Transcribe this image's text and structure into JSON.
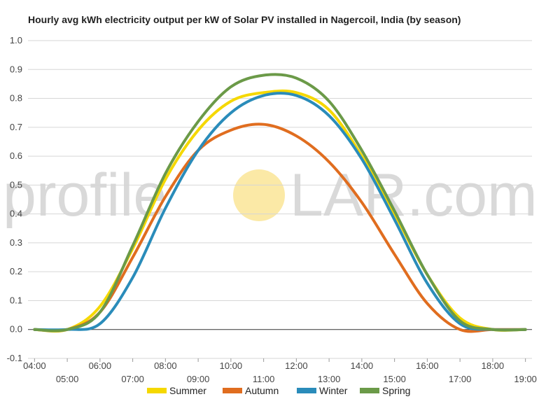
{
  "chart_data": {
    "type": "line",
    "title": "Hourly avg kWh electricity output per kW of Solar PV installed in Nagercoil, India (by season)",
    "xlabel": "",
    "ylabel": "",
    "x": [
      4,
      5,
      6,
      7,
      8,
      9,
      10,
      11,
      12,
      13,
      14,
      15,
      16,
      17,
      18,
      19
    ],
    "x_tick_labels": [
      "04:00",
      "05:00",
      "06:00",
      "07:00",
      "08:00",
      "09:00",
      "10:00",
      "11:00",
      "12:00",
      "13:00",
      "14:00",
      "15:00",
      "16:00",
      "17:00",
      "18:00",
      "19:00"
    ],
    "ylim": [
      -0.1,
      1.0
    ],
    "y_ticks": [
      "1.0",
      "0.9",
      "0.8",
      "0.7",
      "0.6",
      "0.5",
      "0.4",
      "0.3",
      "0.2",
      "0.1",
      "0.0",
      "-0.1"
    ],
    "grid": true,
    "legend_position": "bottom",
    "series": [
      {
        "name": "Summer",
        "color": "#f5d800",
        "values": [
          0.0,
          0.0,
          0.08,
          0.28,
          0.52,
          0.69,
          0.79,
          0.82,
          0.82,
          0.76,
          0.6,
          0.4,
          0.19,
          0.04,
          0.0,
          0.0
        ]
      },
      {
        "name": "Autumn",
        "color": "#e06d1f",
        "values": [
          0.0,
          0.0,
          0.06,
          0.25,
          0.46,
          0.62,
          0.69,
          0.71,
          0.67,
          0.58,
          0.44,
          0.26,
          0.09,
          0.0,
          0.0,
          0.0
        ]
      },
      {
        "name": "Winter",
        "color": "#2a8cba",
        "values": [
          0.0,
          0.0,
          0.02,
          0.18,
          0.42,
          0.62,
          0.75,
          0.81,
          0.81,
          0.74,
          0.59,
          0.38,
          0.16,
          0.02,
          0.0,
          0.0
        ]
      },
      {
        "name": "Spring",
        "color": "#6b9a48",
        "values": [
          0.0,
          0.0,
          0.06,
          0.29,
          0.54,
          0.72,
          0.84,
          0.88,
          0.87,
          0.79,
          0.62,
          0.41,
          0.19,
          0.03,
          0.0,
          0.0
        ]
      }
    ]
  },
  "watermark": {
    "text_left": "profile",
    "text_right": "LAR.com",
    "sun_color": "#fbe9a6"
  }
}
